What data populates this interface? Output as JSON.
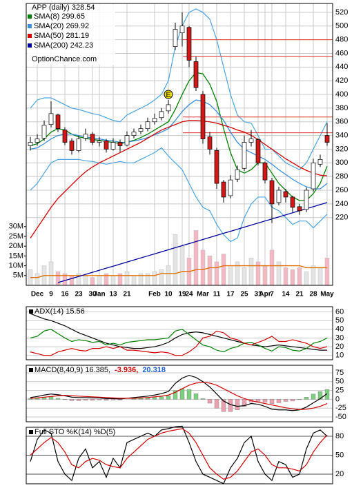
{
  "chart_data": [
    {
      "type": "candlestick",
      "title": "APP (daily) 328.54",
      "source": "OptionChance.com",
      "categories": [
        null,
        "Dec",
        null,
        "9",
        null,
        "16",
        null,
        "23",
        null,
        "30",
        "Jan",
        null,
        "13",
        null,
        "21",
        null,
        null,
        null,
        "Feb",
        null,
        "10",
        null,
        "19",
        "24",
        null,
        "Mar",
        null,
        "11",
        null,
        "17",
        null,
        "25",
        null,
        "31",
        "Apr",
        "7",
        null,
        "14",
        null,
        "21",
        null,
        "28",
        null,
        "May"
      ],
      "open": [
        325,
        330,
        336,
        356,
        370,
        348,
        332,
        318,
        336,
        342,
        330,
        332,
        320,
        330,
        326,
        340,
        346,
        350,
        360,
        366,
        376,
        470,
        490,
        498,
        448,
        400,
        338,
        318,
        272,
        252,
        276,
        292,
        330,
        334,
        300,
        274,
        242,
        258,
        250,
        236,
        232,
        262,
        298,
        340
      ],
      "high": [
        338,
        342,
        362,
        390,
        372,
        352,
        336,
        340,
        350,
        345,
        338,
        335,
        336,
        334,
        346,
        350,
        356,
        366,
        372,
        380,
        392,
        505,
        520,
        500,
        455,
        405,
        345,
        322,
        275,
        282,
        296,
        340,
        348,
        336,
        302,
        278,
        265,
        262,
        252,
        240,
        264,
        306,
        312,
        358
      ],
      "low": [
        318,
        325,
        332,
        352,
        345,
        326,
        312,
        315,
        332,
        326,
        324,
        315,
        318,
        316,
        324,
        336,
        342,
        346,
        356,
        362,
        372,
        465,
        470,
        440,
        405,
        328,
        312,
        262,
        242,
        248,
        272,
        288,
        324,
        296,
        270,
        212,
        238,
        242,
        228,
        224,
        228,
        258,
        294,
        325
      ],
      "close": [
        330,
        335,
        355,
        372,
        350,
        330,
        318,
        335,
        342,
        330,
        332,
        320,
        330,
        325,
        340,
        345,
        350,
        360,
        365,
        375,
        385,
        495,
        500,
        450,
        410,
        335,
        320,
        270,
        250,
        275,
        290,
        330,
        335,
        300,
        275,
        240,
        260,
        250,
        235,
        230,
        260,
        300,
        305,
        330
      ],
      "up_color": "#ffffff",
      "down_color": "#d01818",
      "series": [
        {
          "name": "SMA(8) 299.65",
          "color": "#008000",
          "values": [
            325,
            328,
            335,
            345,
            350,
            348,
            342,
            338,
            336,
            334,
            333,
            331,
            330,
            328,
            330,
            333,
            337,
            342,
            348,
            354,
            360,
            378,
            400,
            420,
            432,
            430,
            415,
            390,
            350,
            315,
            290,
            285,
            290,
            300,
            300,
            285,
            270,
            260,
            250,
            245,
            245,
            255,
            270,
            295
          ]
        },
        {
          "name": "SMA(20) 269.92",
          "color": "#3d8fd9",
          "values": [
            320,
            322,
            328,
            335,
            340,
            342,
            342,
            340,
            338,
            336,
            335,
            333,
            332,
            330,
            330,
            332,
            334,
            337,
            341,
            345,
            350,
            362,
            375,
            385,
            392,
            390,
            385,
            375,
            362,
            345,
            330,
            320,
            315,
            310,
            305,
            298,
            290,
            283,
            276,
            270,
            265,
            262,
            262,
            270
          ]
        },
        {
          "name": "SMA(50) 281.19",
          "color": "#d00000",
          "values": [
            190,
            205,
            220,
            235,
            248,
            258,
            268,
            278,
            287,
            294,
            300,
            305,
            310,
            315,
            320,
            325,
            330,
            336,
            342,
            348,
            352,
            356,
            360,
            362,
            362,
            361,
            360,
            358,
            355,
            352,
            348,
            345,
            340,
            334,
            327,
            320,
            313,
            306,
            300,
            294,
            289,
            285,
            282,
            281
          ]
        },
        {
          "name": "SMA(200) 242.23",
          "color": "#000099",
          "values": [
            null,
            null,
            null,
            null,
            125,
            128,
            131,
            134,
            137,
            140,
            143,
            146,
            149,
            152,
            155,
            158,
            161,
            164,
            167,
            170,
            173,
            176,
            179,
            182,
            185,
            188,
            191,
            194,
            197,
            200,
            203,
            206,
            209,
            212,
            215,
            218,
            221,
            224,
            227,
            230,
            233,
            236,
            239,
            242
          ]
        }
      ],
      "bands": {
        "color": "#4aa3e0",
        "upper": [
          380,
          392,
          395,
          395,
          390,
          385,
          380,
          378,
          375,
          372,
          370,
          366,
          362,
          360,
          370,
          375,
          380,
          385,
          392,
          400,
          420,
          470,
          500,
          520,
          525,
          520,
          510,
          480,
          440,
          400,
          370,
          360,
          358,
          340,
          320,
          320,
          310,
          300,
          295,
          290,
          300,
          320,
          340,
          360
        ],
        "lower": [
          260,
          270,
          285,
          300,
          305,
          305,
          305,
          305,
          303,
          302,
          300,
          298,
          300,
          302,
          300,
          300,
          305,
          310,
          315,
          322,
          310,
          300,
          290,
          270,
          250,
          235,
          230,
          210,
          195,
          185,
          190,
          220,
          240,
          250,
          250,
          235,
          230,
          220,
          210,
          215,
          215,
          205,
          215,
          225
        ]
      },
      "levels": {
        "color": "#e03030",
        "values": [
          480,
          456,
          367,
          344
        ]
      },
      "annotation": {
        "text": "E",
        "index": 20,
        "y": 400,
        "color": "#f0e000"
      },
      "volume": {
        "axis": "y2",
        "up_color": "#e4e4e4",
        "down_color": "#f4b8c4",
        "values": [
          8,
          6,
          10,
          12,
          7,
          6,
          5,
          6,
          5,
          4,
          5,
          6,
          5,
          6,
          7,
          5,
          6,
          6,
          7,
          8,
          10,
          26,
          20,
          14,
          28,
          18,
          15,
          12,
          16,
          10,
          12,
          9,
          14,
          12,
          10,
          18,
          12,
          9,
          8,
          9,
          7,
          10,
          9,
          14
        ]
      },
      "volume_avg": {
        "axis": "y2",
        "color": "#e07000",
        "values": [
          4,
          4,
          5,
          5,
          5,
          5,
          5,
          5,
          5,
          5,
          5,
          5,
          5,
          5,
          5,
          5,
          5,
          5,
          5,
          6,
          6,
          6,
          7,
          7,
          8,
          8,
          9,
          9,
          10,
          10,
          10,
          10,
          10,
          10,
          10,
          10,
          10,
          10,
          10,
          10,
          9,
          9,
          9,
          9
        ]
      },
      "ylim": [
        121,
        533
      ],
      "yticks": [
        220,
        240,
        260,
        280,
        300,
        320,
        340,
        360,
        380,
        400,
        420,
        440,
        460,
        480,
        500,
        520
      ],
      "y2lim": [
        0,
        144
      ],
      "y2ticks": [
        {
          "value": 5,
          "label": "5M"
        },
        {
          "value": 10,
          "label": "10M"
        },
        {
          "value": 15,
          "label": "15M"
        },
        {
          "value": 20,
          "label": "20M"
        },
        {
          "value": 25,
          "label": "25M"
        },
        {
          "value": 30,
          "label": "30M"
        }
      ],
      "grid": true,
      "grid_color": "#c8c8c8"
    },
    {
      "type": "line",
      "series": [
        {
          "name": "ADX(14) 15.56",
          "color": "#000000",
          "values": [
            58,
            55,
            52,
            50,
            47,
            44,
            40,
            36,
            33,
            30,
            27,
            24,
            22,
            20,
            19,
            18,
            18,
            19,
            20,
            22,
            25,
            30,
            34,
            36,
            37,
            36,
            34,
            32,
            30,
            28,
            26,
            24,
            22,
            21,
            20,
            21,
            22,
            21,
            20,
            19,
            18,
            17,
            16,
            16
          ]
        },
        {
          "color": "#008000",
          "values": [
            30,
            32,
            38,
            40,
            35,
            30,
            26,
            28,
            27,
            25,
            26,
            22,
            24,
            22,
            25,
            26,
            27,
            28,
            28,
            29,
            30,
            38,
            40,
            34,
            28,
            22,
            20,
            16,
            14,
            18,
            20,
            24,
            25,
            22,
            18,
            15,
            20,
            19,
            16,
            15,
            18,
            24,
            26,
            30
          ]
        },
        {
          "color": "#d00000",
          "values": [
            14,
            12,
            10,
            10,
            14,
            16,
            18,
            16,
            15,
            18,
            18,
            20,
            18,
            20,
            16,
            16,
            15,
            14,
            13,
            14,
            13,
            10,
            10,
            14,
            20,
            30,
            32,
            38,
            36,
            30,
            28,
            24,
            22,
            25,
            28,
            32,
            26,
            26,
            28,
            26,
            24,
            20,
            18,
            20
          ]
        }
      ],
      "ylim": [
        5,
        66
      ],
      "yticks": [
        10,
        20,
        30,
        40,
        50,
        60
      ],
      "grid": true,
      "grid_color": "#c8c8c8"
    },
    {
      "type": "line",
      "series": [
        {
          "name": "MACD(8,40,9) 16.385,",
          "color": "#000000",
          "values": [
            5,
            8,
            12,
            15,
            13,
            10,
            6,
            5,
            5,
            4,
            4,
            2,
            2,
            1,
            3,
            5,
            7,
            9,
            12,
            16,
            22,
            45,
            60,
            68,
            62,
            50,
            35,
            15,
            -5,
            -15,
            -20,
            -18,
            -12,
            -14,
            -20,
            -28,
            -30,
            -30,
            -32,
            -30,
            -22,
            -10,
            2,
            16
          ]
        },
        {
          "name": "-3.936,",
          "color": "#d00000",
          "values": [
            3,
            4,
            6,
            8,
            10,
            11,
            10,
            9,
            8,
            7,
            6,
            5,
            4,
            3,
            3,
            3,
            4,
            5,
            7,
            9,
            12,
            20,
            30,
            40,
            46,
            48,
            46,
            40,
            30,
            20,
            10,
            2,
            -4,
            -8,
            -12,
            -16,
            -20,
            -24,
            -27,
            -29,
            -28,
            -25,
            -20,
            -12
          ]
        },
        {
          "name": "20.318",
          "color": "#1a5fd0",
          "style": "bar",
          "up_color": "#7ccf7c",
          "down_color": "#eba0b0",
          "values": [
            2,
            4,
            6,
            7,
            3,
            -1,
            -4,
            -4,
            -3,
            -3,
            -2,
            -3,
            -2,
            -2,
            0,
            2,
            3,
            4,
            5,
            7,
            10,
            25,
            30,
            28,
            16,
            2,
            -11,
            -25,
            -35,
            -35,
            -30,
            -20,
            -8,
            -6,
            -8,
            -12,
            -10,
            -6,
            -5,
            -1,
            6,
            15,
            22,
            28
          ]
        }
      ],
      "ylim": [
        -63.7,
        96.5
      ],
      "yticks": [
        -50,
        -25,
        0,
        25,
        50,
        75
      ],
      "grid": true,
      "grid_color": "#c8c8c8"
    },
    {
      "type": "line",
      "title": "Full STO %K(14) %D(5)",
      "series": [
        {
          "color": "#000000",
          "values": [
            40,
            75,
            90,
            85,
            40,
            20,
            10,
            45,
            60,
            30,
            40,
            15,
            45,
            30,
            70,
            75,
            80,
            85,
            80,
            90,
            92,
            95,
            96,
            70,
            40,
            20,
            15,
            10,
            5,
            30,
            45,
            70,
            80,
            40,
            20,
            10,
            40,
            35,
            15,
            20,
            60,
            85,
            90,
            80
          ]
        },
        {
          "color": "#d00000",
          "values": [
            50,
            60,
            70,
            78,
            70,
            55,
            35,
            30,
            40,
            45,
            42,
            35,
            32,
            30,
            45,
            55,
            65,
            75,
            80,
            85,
            88,
            90,
            92,
            85,
            70,
            50,
            30,
            20,
            12,
            15,
            25,
            40,
            55,
            60,
            50,
            35,
            30,
            30,
            28,
            25,
            35,
            55,
            70,
            82
          ]
        }
      ],
      "ylim": [
        4.7,
        94.2
      ],
      "yticks": [
        20,
        50,
        80
      ],
      "grid": true,
      "grid_color": "#555555"
    }
  ]
}
